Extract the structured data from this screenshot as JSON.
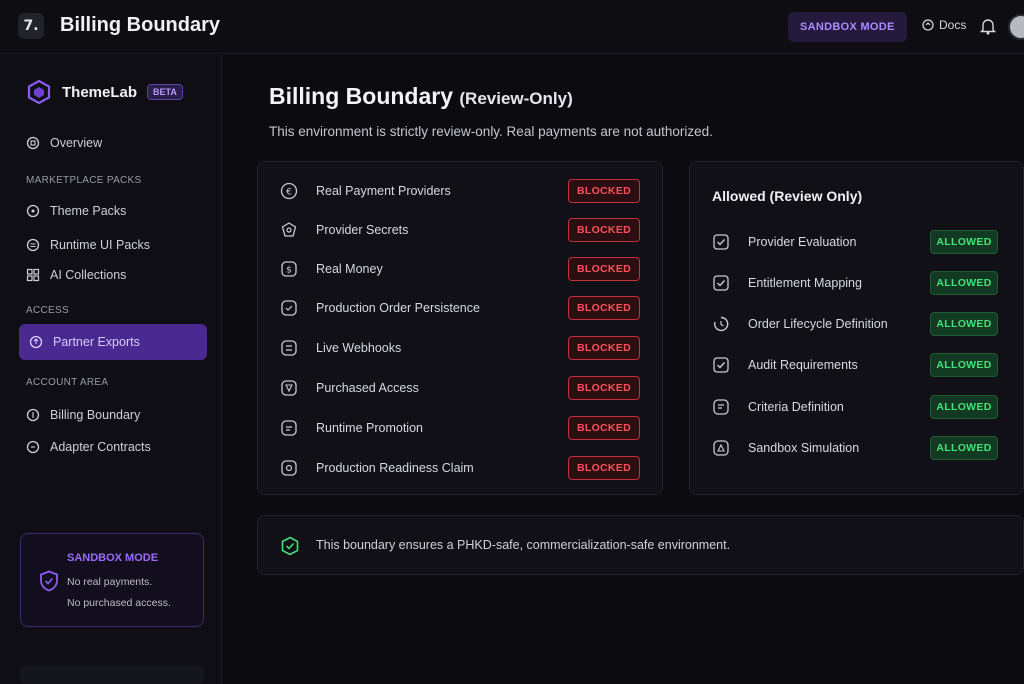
{
  "topbar": {
    "logo_glyph": "7.",
    "title": "Billing Boundary",
    "sandbox_label": "SANDBOX MODE",
    "docs_label": "Docs"
  },
  "sidebar": {
    "brand_name": "ThemeLab",
    "beta_label": "BETA",
    "overview_label": "Overview",
    "section_marketplace": "MARKETPLACE PACKS",
    "theme_packs_label": "Theme Packs",
    "runtime_ui_label": "Runtime UI Packs",
    "ai_collections_label": "AI Collections",
    "section_access": "ACCESS",
    "active_item_label": "Partner Exports",
    "section_account": "ACCOUNT AREA",
    "billing_boundary_label": "Billing Boundary",
    "adapter_contracts_label": "Adapter Contracts",
    "sandbox_card": {
      "title": "SANDBOX MODE",
      "line1": "No real payments.",
      "line2": "No purchased access."
    }
  },
  "main": {
    "title": "Billing Boundary",
    "title_sub": "(Review-Only)",
    "description": "This environment is strictly review-only. Real payments are not authorized.",
    "blocked_items": [
      {
        "label": "Real Payment Providers",
        "status": "BLOCKED",
        "icon": "currency-icon"
      },
      {
        "label": "Provider Secrets",
        "status": "BLOCKED",
        "icon": "key-icon"
      },
      {
        "label": "Real Money",
        "status": "BLOCKED",
        "icon": "money-icon"
      },
      {
        "label": "Production Order Persistence",
        "status": "BLOCKED",
        "icon": "order-icon"
      },
      {
        "label": "Live Webhooks",
        "status": "BLOCKED",
        "icon": "webhook-icon"
      },
      {
        "label": "Purchased Access",
        "status": "BLOCKED",
        "icon": "access-icon"
      },
      {
        "label": "Runtime Promotion",
        "status": "BLOCKED",
        "icon": "promotion-icon"
      },
      {
        "label": "Production Readiness Claim",
        "status": "BLOCKED",
        "icon": "readiness-icon"
      }
    ],
    "allowed_title": "Allowed (Review Only)",
    "allowed_items": [
      {
        "label": "Provider Evaluation",
        "status": "ALLOWED",
        "icon": "checkbox-icon"
      },
      {
        "label": "Entitlement Mapping",
        "status": "ALLOWED",
        "icon": "checkbox-icon"
      },
      {
        "label": "Order Lifecycle Definition",
        "status": "ALLOWED",
        "icon": "lifecycle-icon"
      },
      {
        "label": "Audit Requirements",
        "status": "ALLOWED",
        "icon": "checkbox-icon"
      },
      {
        "label": "Criteria Definition",
        "status": "ALLOWED",
        "icon": "criteria-icon"
      },
      {
        "label": "Sandbox Simulation",
        "status": "ALLOWED",
        "icon": "sandbox-icon"
      }
    ],
    "notice_text": "This boundary ensures a PHKD-safe, commercialization-safe environment."
  },
  "colors": {
    "background": "#0b0b10",
    "accent_purple": "#6d3fd6",
    "blocked_red": "#ff4f5c",
    "allowed_green": "#43e27a"
  }
}
